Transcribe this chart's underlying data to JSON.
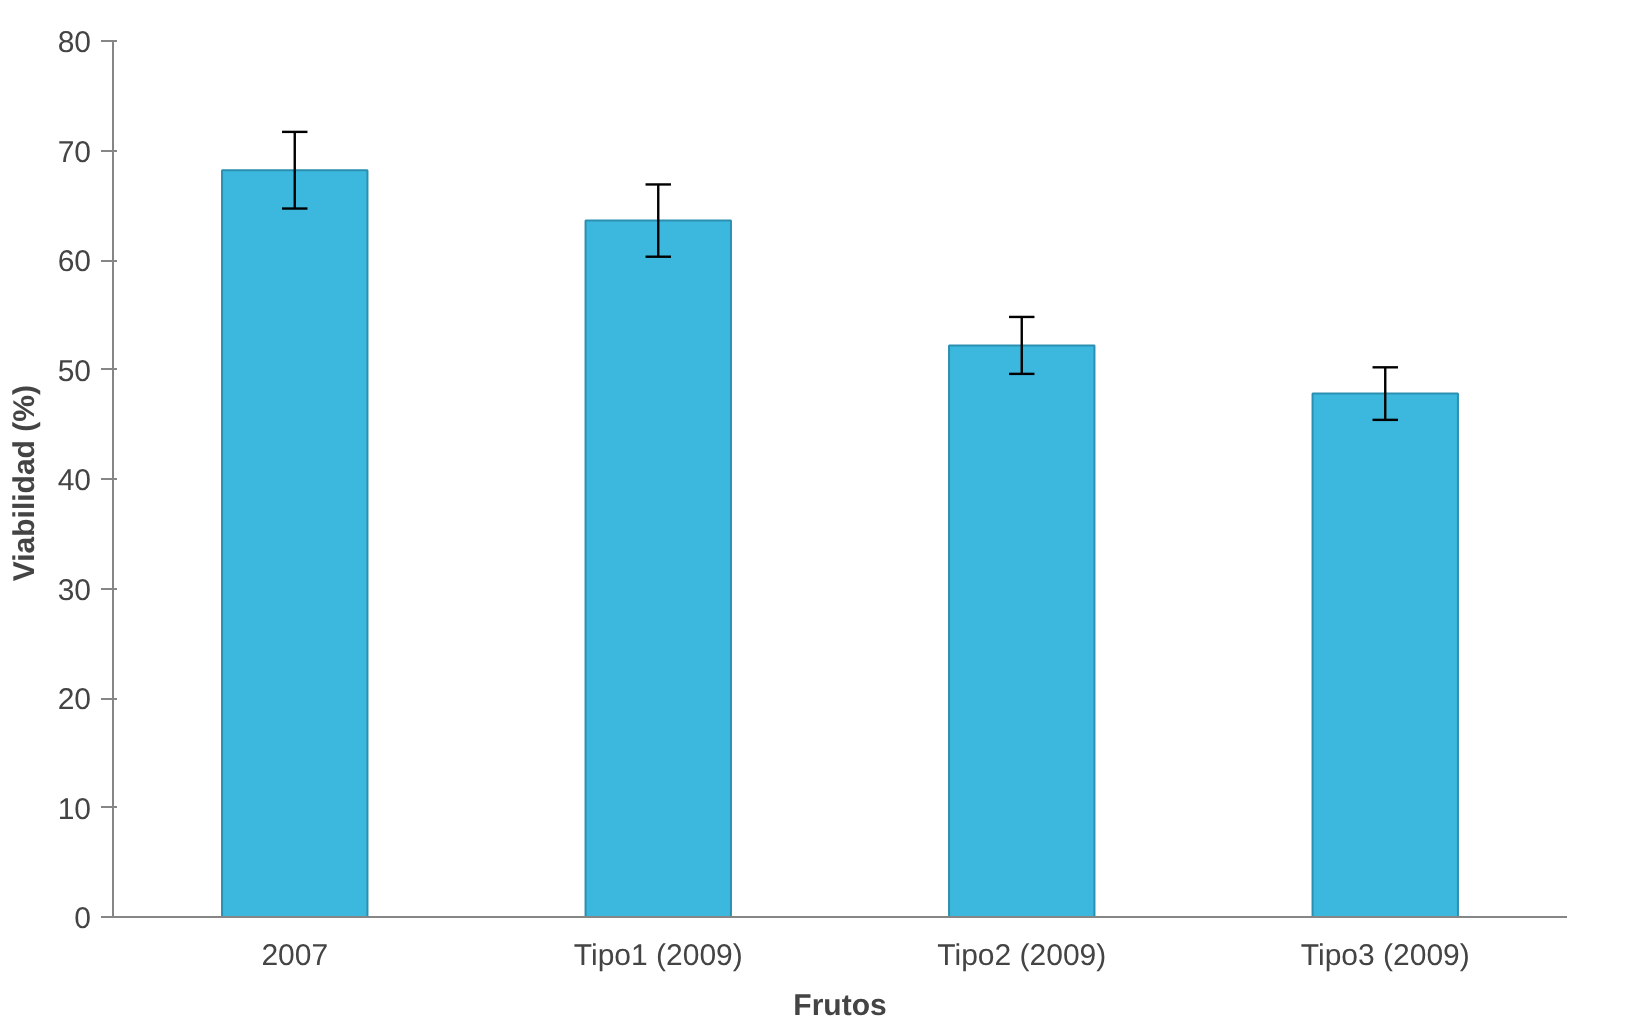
{
  "chart_data": {
    "type": "bar",
    "xlabel": "Frutos",
    "ylabel": "Viabilidad  (%)",
    "categories": [
      "2007",
      "Tipo1 (2009)",
      "Tipo2 (2009)",
      "Tipo3 (2009)"
    ],
    "values": [
      68.2,
      63.6,
      52.2,
      47.8
    ],
    "errors": [
      3.5,
      3.3,
      2.6,
      2.4
    ],
    "color": "#3cb8de",
    "ylim": [
      0,
      80
    ],
    "yticks": [
      0,
      10,
      20,
      30,
      40,
      50,
      60,
      70,
      80
    ],
    "grid": false
  }
}
